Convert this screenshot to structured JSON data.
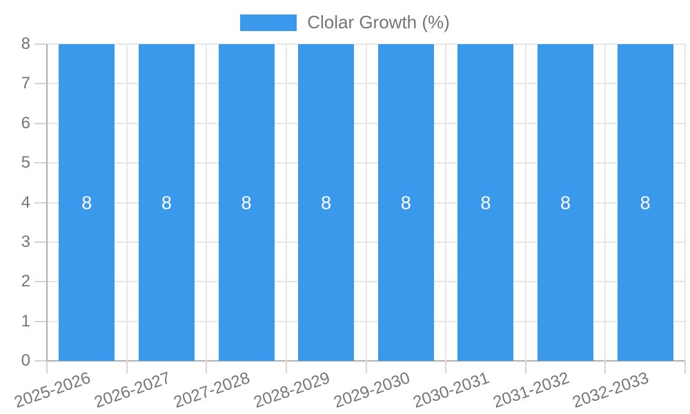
{
  "legend": {
    "items": [
      {
        "label": "Clolar Growth (%)",
        "swatch_color": "#3b99ec"
      }
    ]
  },
  "chart_data": {
    "type": "bar",
    "title": "",
    "xlabel": "",
    "ylabel": "",
    "categories": [
      "2025-2026",
      "2026-2027",
      "2027-2028",
      "2028-2029",
      "2029-2030",
      "2030-2031",
      "2031-2032",
      "2032-2033"
    ],
    "series": [
      {
        "name": "Clolar Growth (%)",
        "color": "#3b99ec",
        "values": [
          8,
          8,
          8,
          8,
          8,
          8,
          8,
          8
        ]
      }
    ],
    "bar_labels_shown": true,
    "bar_label_color": "#ffffff",
    "ylim": [
      0,
      8
    ],
    "ytick_step": 1,
    "yticks": [
      0,
      1,
      2,
      3,
      4,
      5,
      6,
      7,
      8
    ],
    "grid": true,
    "legend_position": "top",
    "colors": {
      "background": "#ffffff",
      "axis_text": "#757575",
      "grid_line": "#e6e6e6",
      "axis_line": "#b0b0b0",
      "tick_line": "#d4d4d4"
    }
  }
}
